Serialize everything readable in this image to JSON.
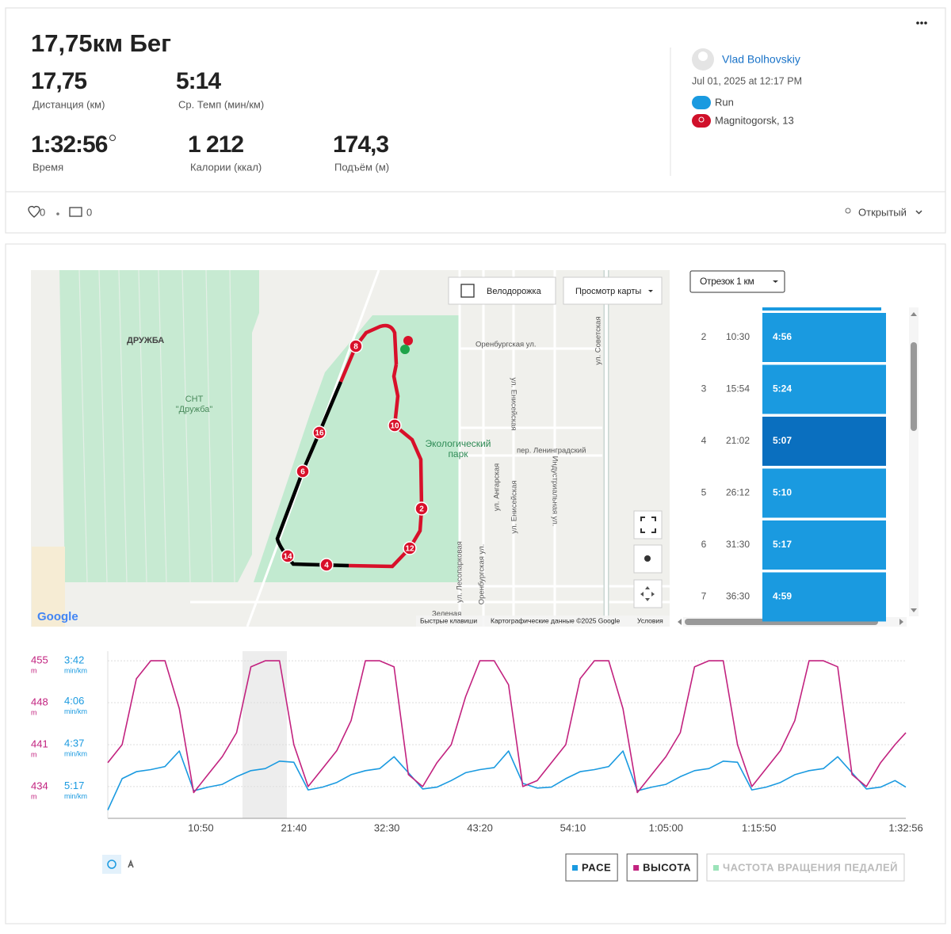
{
  "header": {
    "title": "17,75км Бег",
    "stats": [
      {
        "value": "17,75",
        "label": "Дистанция (км)"
      },
      {
        "value": "5:14",
        "label": "Ср. Темп (мин/км)"
      },
      {
        "value": "1:32:56",
        "label": "Время"
      },
      {
        "value": "1 212",
        "label": "Калории (ккал)"
      },
      {
        "value": "174,3",
        "label": "Подъём (м)"
      }
    ]
  },
  "athlete": {
    "name": "Vlad Bolhovskiy",
    "date": "Jul 01, 2025 at 12:17 PM",
    "activity": "Run",
    "location": "Magnitogorsk, 13"
  },
  "social": {
    "likes": "0",
    "comments": "0",
    "visibility": "Открытый"
  },
  "map": {
    "toggle": "Велодорожка",
    "view": "Просмотр карты",
    "places": [
      "ДРУЖБА",
      "СНТ",
      "\"Дружба\"",
      "Экологический",
      "парк",
      "Оренбургская ул.",
      "пер. Ленинградский",
      "Зеленая",
      "ул. Енисейская",
      "ул. Ангарская",
      "ул. Енисейская",
      "Индустриальная ул.",
      "ул. Советская",
      "ул. Лесопарковая",
      "Оренбургская ул."
    ],
    "markers": [
      "8",
      "10",
      "16",
      "6",
      "2",
      "12",
      "14",
      "4"
    ],
    "attribution": [
      "Быстрые клавиши",
      "Картографические данные ©2025 Google",
      "Условия"
    ],
    "logo": "Google"
  },
  "splits": {
    "selector": "Отрезок 1 км",
    "rows": [
      {
        "km": "2",
        "time": "10:30",
        "pace": "4:56"
      },
      {
        "km": "3",
        "time": "15:54",
        "pace": "5:24"
      },
      {
        "km": "4",
        "time": "21:02",
        "pace": "5:07"
      },
      {
        "km": "5",
        "time": "26:12",
        "pace": "5:10"
      },
      {
        "km": "6",
        "time": "31:30",
        "pace": "5:17"
      },
      {
        "km": "7",
        "time": "36:30",
        "pace": "4:59"
      }
    ]
  },
  "chart_data": {
    "type": "line",
    "x": [
      0,
      100,
      200,
      300,
      400,
      500,
      600,
      700,
      800,
      900,
      1000,
      1100,
      1200,
      1300,
      1400,
      1500,
      1600,
      1700,
      1800,
      1900,
      2000,
      2100,
      2200,
      2300,
      2400,
      2500,
      2600,
      2700,
      2800,
      2900,
      3000,
      3100,
      3200,
      3300,
      3400,
      3500,
      3600,
      3700,
      3800,
      3900,
      4000,
      4100,
      4200,
      4300,
      4400,
      4500,
      4600,
      4700,
      4800,
      4900,
      5000,
      5100,
      5200,
      5300,
      5400,
      5500,
      5576
    ],
    "xlim": [
      0,
      5576
    ],
    "xticks": [
      {
        "value": 650,
        "label": "10:50"
      },
      {
        "value": 1300,
        "label": "21:40"
      },
      {
        "value": 1950,
        "label": "32:30"
      },
      {
        "value": 2600,
        "label": "43:20"
      },
      {
        "value": 3250,
        "label": "54:10"
      },
      {
        "value": 3900,
        "label": "1:05:00"
      },
      {
        "value": 4550,
        "label": "1:15:50"
      },
      {
        "value": 5576,
        "label": "1:32:56"
      }
    ],
    "ylim": [
      428.7,
      456.6
    ],
    "yticks": [
      434,
      441,
      448,
      455
    ],
    "yunit": "m",
    "ycolor": "#c2227f",
    "y2lim": [
      356,
      217
    ],
    "y2scale": "reciprocal",
    "y2unit": "min/km",
    "y2color": "#1a9ae0",
    "y2ticks": [
      {
        "value": 317,
        "label": "5:17"
      },
      {
        "value": 277,
        "label": "4:37"
      },
      {
        "value": 246,
        "label": "4:06"
      },
      {
        "value": 222,
        "label": "3:42"
      }
    ],
    "grid": true,
    "series": [
      {
        "name": "PACE",
        "color": "#1a9ae0",
        "axis": "y2",
        "values": [
          345,
          309,
          302,
          300,
          297,
          283,
          322,
          318,
          315,
          307,
          301,
          299,
          292,
          293,
          321,
          318,
          313,
          305,
          301,
          299,
          288,
          303,
          320,
          318,
          311,
          303,
          300,
          298,
          283,
          314,
          319,
          318,
          309,
          302,
          300,
          297,
          283,
          322,
          318,
          315,
          307,
          301,
          299,
          292,
          293,
          321,
          318,
          313,
          305,
          301,
          299,
          288,
          303,
          320,
          318,
          311,
          318
        ]
      },
      {
        "name": "ВЫСОТА",
        "color": "#c2227f",
        "axis": "y",
        "values": [
          438,
          441,
          452,
          455,
          455,
          447,
          433,
          436,
          439,
          443,
          454,
          455,
          455,
          441,
          434,
          437,
          440,
          445,
          455,
          455,
          454,
          436,
          434,
          438,
          441,
          449,
          455,
          455,
          451,
          434,
          435,
          438,
          441,
          452,
          455,
          455,
          447,
          433,
          436,
          439,
          443,
          454,
          455,
          455,
          441,
          434,
          437,
          440,
          445,
          455,
          455,
          454,
          436,
          434,
          438,
          441,
          443
        ]
      }
    ],
    "inactive_legend": [
      {
        "name": "ЧАСТОТА ВРАЩЕНИЯ ПЕДАЛЕЙ",
        "color": "#9be3b9"
      }
    ]
  }
}
